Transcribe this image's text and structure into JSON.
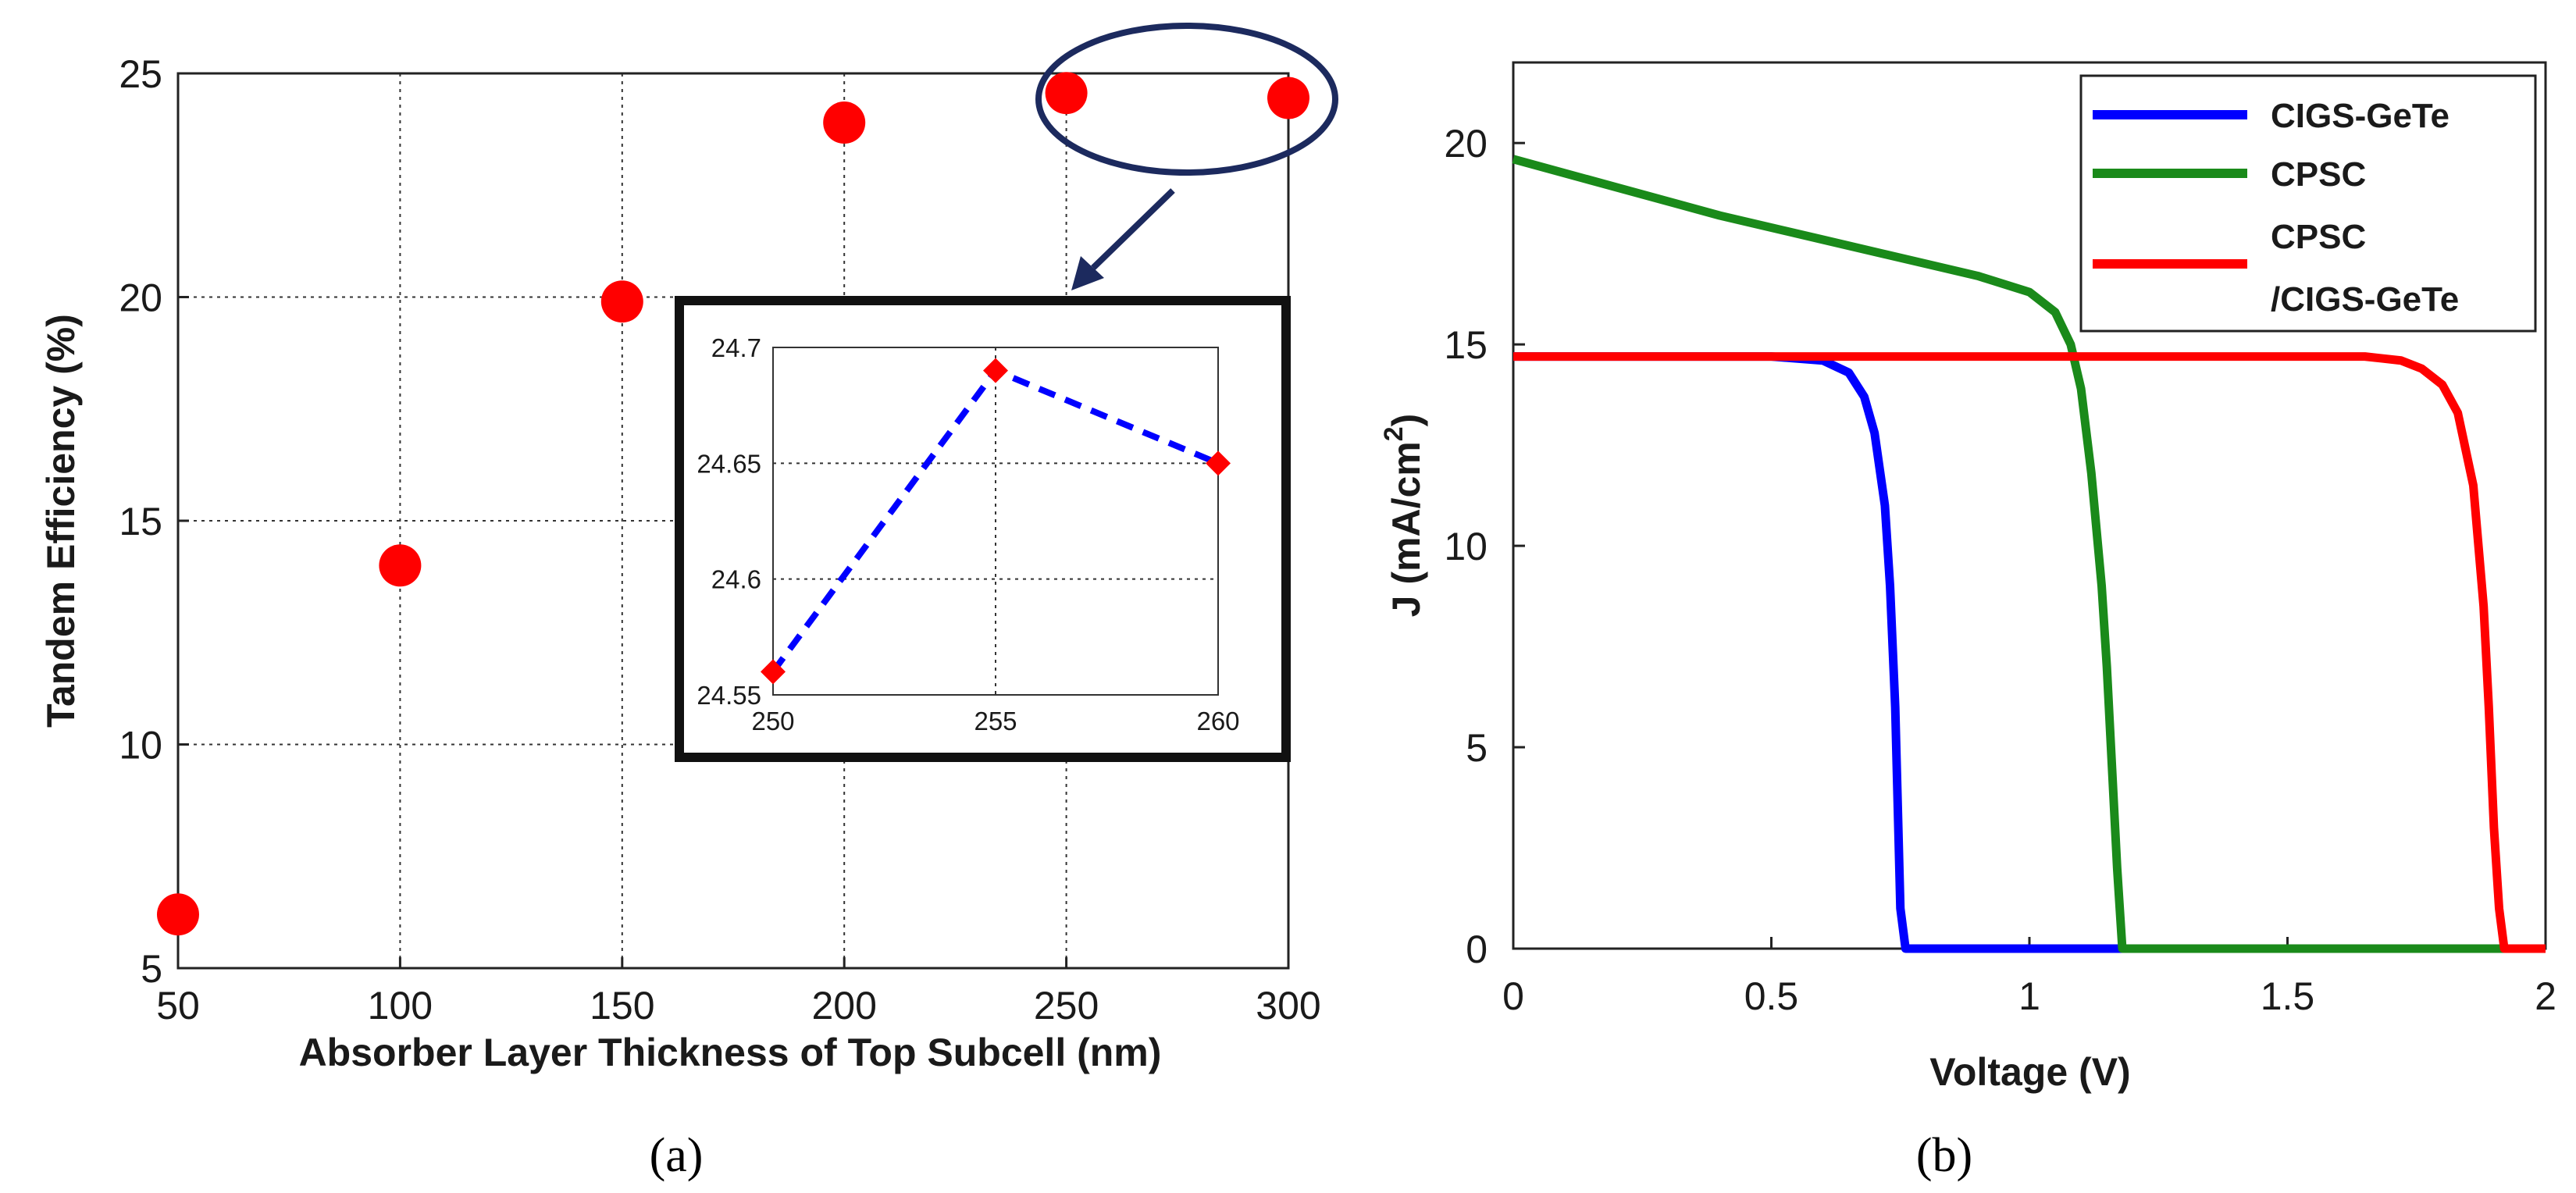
{
  "chart_data": [
    {
      "panel": "(a)",
      "type": "scatter",
      "xlabel": "Absorber Layer Thickness of Top Subcell  (nm)",
      "ylabel": "Tandem Efficiency (%)",
      "xlim": [
        50,
        300
      ],
      "ylim": [
        5,
        25
      ],
      "xticks": [
        "50",
        "100",
        "150",
        "200",
        "250",
        "300"
      ],
      "yticks": [
        "5",
        "10",
        "15",
        "20",
        "25"
      ],
      "grid": true,
      "x": [
        50,
        100,
        150,
        200,
        250,
        300
      ],
      "y": [
        6.2,
        14.0,
        19.9,
        23.9,
        24.56,
        24.45
      ],
      "color": "#ff0000",
      "annotation": "ellipse around 250-300 nm points with arrow to inset",
      "inset": {
        "type": "line",
        "style": "dashed",
        "x": [
          250,
          255,
          260
        ],
        "y": [
          24.56,
          24.69,
          24.65
        ],
        "xlim": [
          250,
          260
        ],
        "ylim": [
          24.55,
          24.7
        ],
        "xticks": [
          "250",
          "255",
          "260"
        ],
        "yticks": [
          "24.55",
          "24.6",
          "24.65",
          "24.7"
        ],
        "line_color": "#0000ff",
        "marker_color": "#ff0000"
      }
    },
    {
      "panel": "(b)",
      "type": "line",
      "xlabel": "Voltage (V)",
      "ylabel": "J (mA/cm",
      "ylabel_sup": "2",
      "ylabel_close": ")",
      "xlim": [
        0,
        2
      ],
      "ylim": [
        0,
        22
      ],
      "xticks": [
        "0",
        "0.5",
        "1",
        "1.5",
        "2"
      ],
      "yticks": [
        "0",
        "5",
        "10",
        "15",
        "20"
      ],
      "grid": false,
      "legend_position": "top-right",
      "series": [
        {
          "name": "CIGS-GeTe",
          "color": "#0000ff",
          "x": [
            0,
            0.5,
            0.6,
            0.65,
            0.68,
            0.7,
            0.72,
            0.73,
            0.74,
            0.745,
            0.75,
            0.76,
            2.0
          ],
          "y": [
            14.7,
            14.7,
            14.6,
            14.3,
            13.7,
            12.8,
            11.0,
            9.0,
            6.0,
            3.5,
            1.0,
            0,
            0
          ]
        },
        {
          "name": "CPSC",
          "color": "#1a8a1a",
          "x": [
            0,
            0.2,
            0.4,
            0.6,
            0.8,
            0.9,
            1.0,
            1.05,
            1.08,
            1.1,
            1.12,
            1.14,
            1.15,
            1.16,
            1.17,
            1.18,
            2.0
          ],
          "y": [
            19.6,
            18.9,
            18.2,
            17.6,
            17.0,
            16.7,
            16.3,
            15.8,
            15.0,
            13.9,
            11.8,
            9.0,
            7.0,
            4.5,
            2.0,
            0,
            0
          ]
        },
        {
          "name": "CPSC\n/CIGS-GeTe",
          "legend_lines": [
            "CPSC",
            "/CIGS-GeTe"
          ],
          "color": "#ff0000",
          "x": [
            0,
            1.5,
            1.65,
            1.72,
            1.76,
            1.8,
            1.83,
            1.86,
            1.88,
            1.89,
            1.9,
            1.91,
            1.92,
            2.0
          ],
          "y": [
            14.7,
            14.7,
            14.7,
            14.6,
            14.4,
            14.0,
            13.3,
            11.5,
            8.5,
            6.0,
            3.0,
            1.0,
            0,
            0
          ]
        }
      ]
    }
  ]
}
